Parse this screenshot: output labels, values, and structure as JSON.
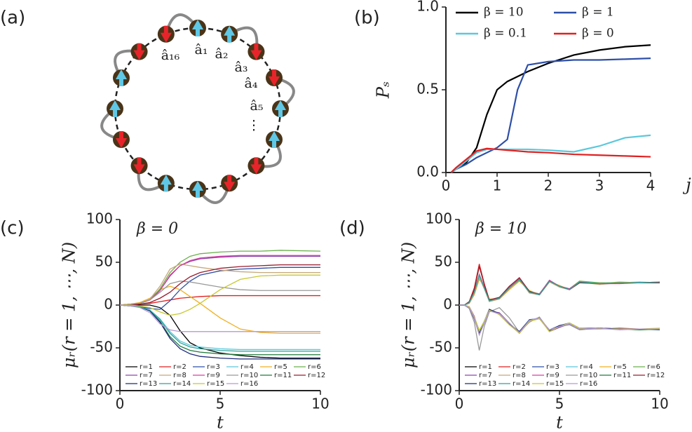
{
  "diagram": {
    "panel_label": "(a)",
    "labels": [
      "â₁₆",
      "â₁",
      "â₂",
      "â₃",
      "â₄",
      "â₅",
      "⋮"
    ]
  },
  "chart_data": [
    {
      "type": "line",
      "panel_label": "(b)",
      "x_label": "j",
      "y_label": "Pₛ",
      "x": [
        0.1,
        0.2,
        0.4,
        0.6,
        0.8,
        1,
        1.2,
        1.4,
        1.6,
        2,
        2.5,
        3,
        3.5,
        4
      ],
      "xlim": [
        0,
        4
      ],
      "ylim": [
        0,
        1
      ],
      "xticks": [
        0,
        1,
        2,
        3,
        4
      ],
      "yticks": [
        {
          "value": 0,
          "label": "0.0"
        },
        0.5,
        {
          "value": 1,
          "label": "1.0"
        }
      ],
      "legend": "upper center",
      "series": [
        {
          "name": "β = 10",
          "color": "#000000",
          "values": [
            0,
            0.02,
            0.06,
            0.15,
            0.35,
            0.5,
            0.55,
            0.58,
            0.61,
            0.66,
            0.71,
            0.74,
            0.76,
            0.77
          ]
        },
        {
          "name": "β = 1",
          "color": "#2e4fa8",
          "values": [
            0,
            0.02,
            0.05,
            0.09,
            0.12,
            0.15,
            0.2,
            0.5,
            0.65,
            0.67,
            0.68,
            0.68,
            0.685,
            0.69
          ]
        },
        {
          "name": "β = 0.1",
          "color": "#5bc8dc",
          "values": [
            0,
            0.02,
            0.07,
            0.12,
            0.14,
            0.14,
            0.14,
            0.14,
            0.14,
            0.135,
            0.125,
            0.16,
            0.21,
            0.225
          ]
        },
        {
          "name": "β = 0",
          "color": "#e02020",
          "values": [
            0,
            0.03,
            0.08,
            0.13,
            0.145,
            0.14,
            0.135,
            0.13,
            0.125,
            0.12,
            0.11,
            0.105,
            0.1,
            0.095
          ]
        }
      ]
    },
    {
      "type": "line",
      "panel_label": "(c)",
      "annotation": "β = 0",
      "x_label": "t",
      "y_label": "μᵣ(r = 1, ⋯, N)",
      "x": [
        0,
        0.5,
        1,
        1.5,
        2,
        2.5,
        3,
        3.5,
        4,
        5,
        6,
        7,
        8,
        10
      ],
      "xlim": [
        0,
        10
      ],
      "ylim": [
        -100,
        100
      ],
      "xticks": [
        0,
        5,
        10
      ],
      "yticks": [
        -100,
        -50,
        0,
        50,
        100
      ],
      "legend": "lower center",
      "series": [
        {
          "name": "r=1",
          "color": "#000000",
          "values": [
            0,
            0,
            0,
            0,
            -3,
            -12,
            -30,
            -44,
            -50,
            -56,
            -59,
            -61,
            -62,
            -62
          ]
        },
        {
          "name": "r=2",
          "color": "#e02020",
          "values": [
            0,
            0,
            1,
            2,
            4,
            6,
            8,
            9,
            10,
            11,
            11,
            11,
            11,
            11
          ]
        },
        {
          "name": "r=3",
          "color": "#2e4fa8",
          "values": [
            0,
            0,
            -2,
            -4,
            -5,
            5,
            18,
            28,
            35,
            40,
            42,
            43,
            44,
            44
          ]
        },
        {
          "name": "r=4",
          "color": "#5bc8dc",
          "values": [
            0,
            -1,
            -2,
            -6,
            -16,
            -31,
            -42,
            -47,
            -49,
            -51,
            -52,
            -52,
            -52,
            -52
          ]
        },
        {
          "name": "r=5",
          "color": "#f0b020",
          "values": [
            0,
            1,
            3,
            8,
            18,
            22,
            18,
            10,
            2,
            -15,
            -28,
            -32,
            -33,
            -33
          ]
        },
        {
          "name": "r=6",
          "color": "#6ab04c",
          "values": [
            0,
            1,
            2,
            6,
            19,
            38,
            50,
            57,
            60,
            62,
            63,
            63,
            64,
            63
          ]
        },
        {
          "name": "r=7",
          "color": "#8e44ad",
          "values": [
            0,
            1,
            2,
            6,
            17,
            34,
            46,
            51,
            54,
            56,
            57,
            57,
            57,
            57
          ]
        },
        {
          "name": "r=8",
          "color": "#c8a878",
          "values": [
            0,
            1,
            2,
            7,
            22,
            42,
            48,
            46,
            44,
            41,
            39,
            38,
            38,
            38
          ]
        },
        {
          "name": "r=9",
          "color": "#d63fa0",
          "values": [
            0,
            1,
            2,
            6,
            17,
            35,
            46,
            52,
            55,
            57,
            58,
            58,
            58,
            58
          ]
        },
        {
          "name": "r=10",
          "color": "#999999",
          "values": [
            0,
            1,
            2,
            6,
            15,
            25,
            28,
            27,
            25,
            21,
            18,
            17,
            17,
            17
          ]
        },
        {
          "name": "r=11",
          "color": "#1e7a3a",
          "values": [
            0,
            -1,
            -2,
            -7,
            -19,
            -37,
            -48,
            -53,
            -55,
            -57,
            -58,
            -58,
            -58,
            -58
          ]
        },
        {
          "name": "r=12",
          "color": "#9a1c2c",
          "values": [
            0,
            0,
            1,
            3,
            8,
            15,
            25,
            33,
            38,
            43,
            45,
            46,
            47,
            47
          ]
        },
        {
          "name": "r=13",
          "color": "#1c2a7a",
          "values": [
            0,
            -1,
            -2,
            -7,
            -20,
            -39,
            -51,
            -57,
            -60,
            -62,
            -63,
            -63,
            -63,
            -63
          ]
        },
        {
          "name": "r=14",
          "color": "#2aa39a",
          "values": [
            0,
            -1,
            -2,
            -6,
            -17,
            -33,
            -44,
            -49,
            -51,
            -53,
            -54,
            -54,
            -54,
            -54
          ]
        },
        {
          "name": "r=15",
          "color": "#c8c830",
          "values": [
            0,
            0,
            -1,
            -3,
            -8,
            -12,
            -10,
            -5,
            2,
            18,
            30,
            34,
            35,
            35
          ]
        },
        {
          "name": "r=16",
          "color": "#b49ad0",
          "values": [
            0,
            -1,
            -3,
            -9,
            -22,
            -29,
            -31,
            -31,
            -31,
            -31,
            -31,
            -31,
            -31,
            -31
          ]
        }
      ]
    },
    {
      "type": "line",
      "panel_label": "(d)",
      "annotation": "β = 10",
      "x_label": "t",
      "y_label": "μᵣ(r = 1, ⋯, N)",
      "x": [
        0,
        0.25,
        0.5,
        0.75,
        1,
        1.25,
        1.5,
        2,
        2.5,
        3,
        3.5,
        4,
        4.5,
        5,
        5.5,
        6,
        7,
        8,
        9,
        10
      ],
      "xlim": [
        0,
        10
      ],
      "ylim": [
        -100,
        100
      ],
      "xticks": [
        0,
        5,
        10
      ],
      "yticks": [
        -100,
        -50,
        0,
        50,
        100
      ],
      "legend": "lower center",
      "series": [
        {
          "name": "r=1",
          "color": "#000000",
          "values": [
            0,
            0,
            -3,
            -15,
            -32,
            -20,
            -6,
            -10,
            -22,
            -32,
            -18,
            -15,
            -30,
            -25,
            -22,
            -28,
            -27,
            -28,
            -28,
            -28
          ]
        },
        {
          "name": "r=2",
          "color": "#e02020",
          "values": [
            0,
            0,
            4,
            20,
            48,
            25,
            6,
            8,
            22,
            31,
            16,
            13,
            28,
            22,
            19,
            27,
            25,
            26,
            26,
            26
          ]
        },
        {
          "name": "r=3",
          "color": "#2e4fa8",
          "values": [
            0,
            0,
            -3,
            -14,
            -30,
            -19,
            -5,
            -11,
            -23,
            -31,
            -17,
            -16,
            -29,
            -24,
            -21,
            -27,
            -27,
            -28,
            -28,
            -29
          ]
        },
        {
          "name": "r=4",
          "color": "#5bc8dc",
          "values": [
            0,
            0,
            3,
            15,
            34,
            20,
            5,
            9,
            21,
            30,
            15,
            12,
            29,
            21,
            18,
            27,
            25,
            26,
            27,
            26
          ]
        },
        {
          "name": "r=5",
          "color": "#f0b020",
          "values": [
            0,
            0,
            2,
            12,
            30,
            22,
            7,
            7,
            18,
            28,
            17,
            12,
            27,
            23,
            18,
            26,
            25,
            27,
            26,
            26
          ]
        },
        {
          "name": "r=6",
          "color": "#6ab04c",
          "values": [
            0,
            0,
            3,
            14,
            33,
            21,
            6,
            8,
            20,
            29,
            16,
            13,
            28,
            22,
            19,
            28,
            26,
            26,
            26,
            27
          ]
        },
        {
          "name": "r=7",
          "color": "#8e44ad",
          "values": [
            0,
            0,
            -2,
            -13,
            -33,
            -21,
            -7,
            -9,
            -21,
            -33,
            -19,
            -15,
            -31,
            -26,
            -22,
            -28,
            -28,
            -27,
            -28,
            -28
          ]
        },
        {
          "name": "r=8",
          "color": "#c8a878",
          "values": [
            0,
            0,
            2,
            13,
            32,
            19,
            4,
            7,
            19,
            30,
            14,
            12,
            27,
            21,
            18,
            27,
            24,
            26,
            26,
            26
          ]
        },
        {
          "name": "r=9",
          "color": "#d63fa0",
          "values": [
            0,
            0,
            3,
            16,
            36,
            21,
            5,
            8,
            21,
            31,
            15,
            13,
            29,
            22,
            19,
            27,
            25,
            25,
            26,
            26
          ]
        },
        {
          "name": "r=10",
          "color": "#999999",
          "values": [
            0,
            0,
            -4,
            -20,
            -53,
            -25,
            -8,
            -3,
            -15,
            -32,
            -20,
            -14,
            -30,
            -25,
            -23,
            -29,
            -27,
            -28,
            -28,
            -28
          ]
        },
        {
          "name": "r=11",
          "color": "#1e7a3a",
          "values": [
            0,
            0,
            -3,
            -15,
            -31,
            -20,
            -6,
            -10,
            -22,
            -32,
            -18,
            -15,
            -30,
            -25,
            -22,
            -28,
            -27,
            -28,
            -29,
            -28
          ]
        },
        {
          "name": "r=12",
          "color": "#9a1c2c",
          "values": [
            0,
            0,
            4,
            18,
            45,
            24,
            6,
            9,
            22,
            32,
            16,
            12,
            28,
            22,
            18,
            26,
            25,
            26,
            26,
            26
          ]
        },
        {
          "name": "r=13",
          "color": "#1c2a7a",
          "values": [
            0,
            0,
            -3,
            -16,
            -34,
            -21,
            -5,
            -10,
            -22,
            -31,
            -18,
            -15,
            -30,
            -24,
            -22,
            -28,
            -27,
            -28,
            -28,
            -28
          ]
        },
        {
          "name": "r=14",
          "color": "#2aa39a",
          "values": [
            0,
            0,
            3,
            15,
            35,
            20,
            5,
            8,
            20,
            30,
            15,
            12,
            28,
            22,
            18,
            27,
            25,
            26,
            26,
            27
          ]
        },
        {
          "name": "r=15",
          "color": "#c8c830",
          "values": [
            0,
            0,
            -2,
            -14,
            -30,
            -19,
            -6,
            -11,
            -23,
            -33,
            -19,
            -16,
            -31,
            -25,
            -21,
            -27,
            -28,
            -28,
            -28,
            -27
          ]
        },
        {
          "name": "r=16",
          "color": "#b49ad0",
          "values": [
            0,
            0,
            -3,
            -15,
            -35,
            -21,
            -7,
            -10,
            -21,
            -32,
            -18,
            -15,
            -29,
            -25,
            -22,
            -28,
            -27,
            -29,
            -28,
            -28
          ]
        }
      ]
    }
  ]
}
